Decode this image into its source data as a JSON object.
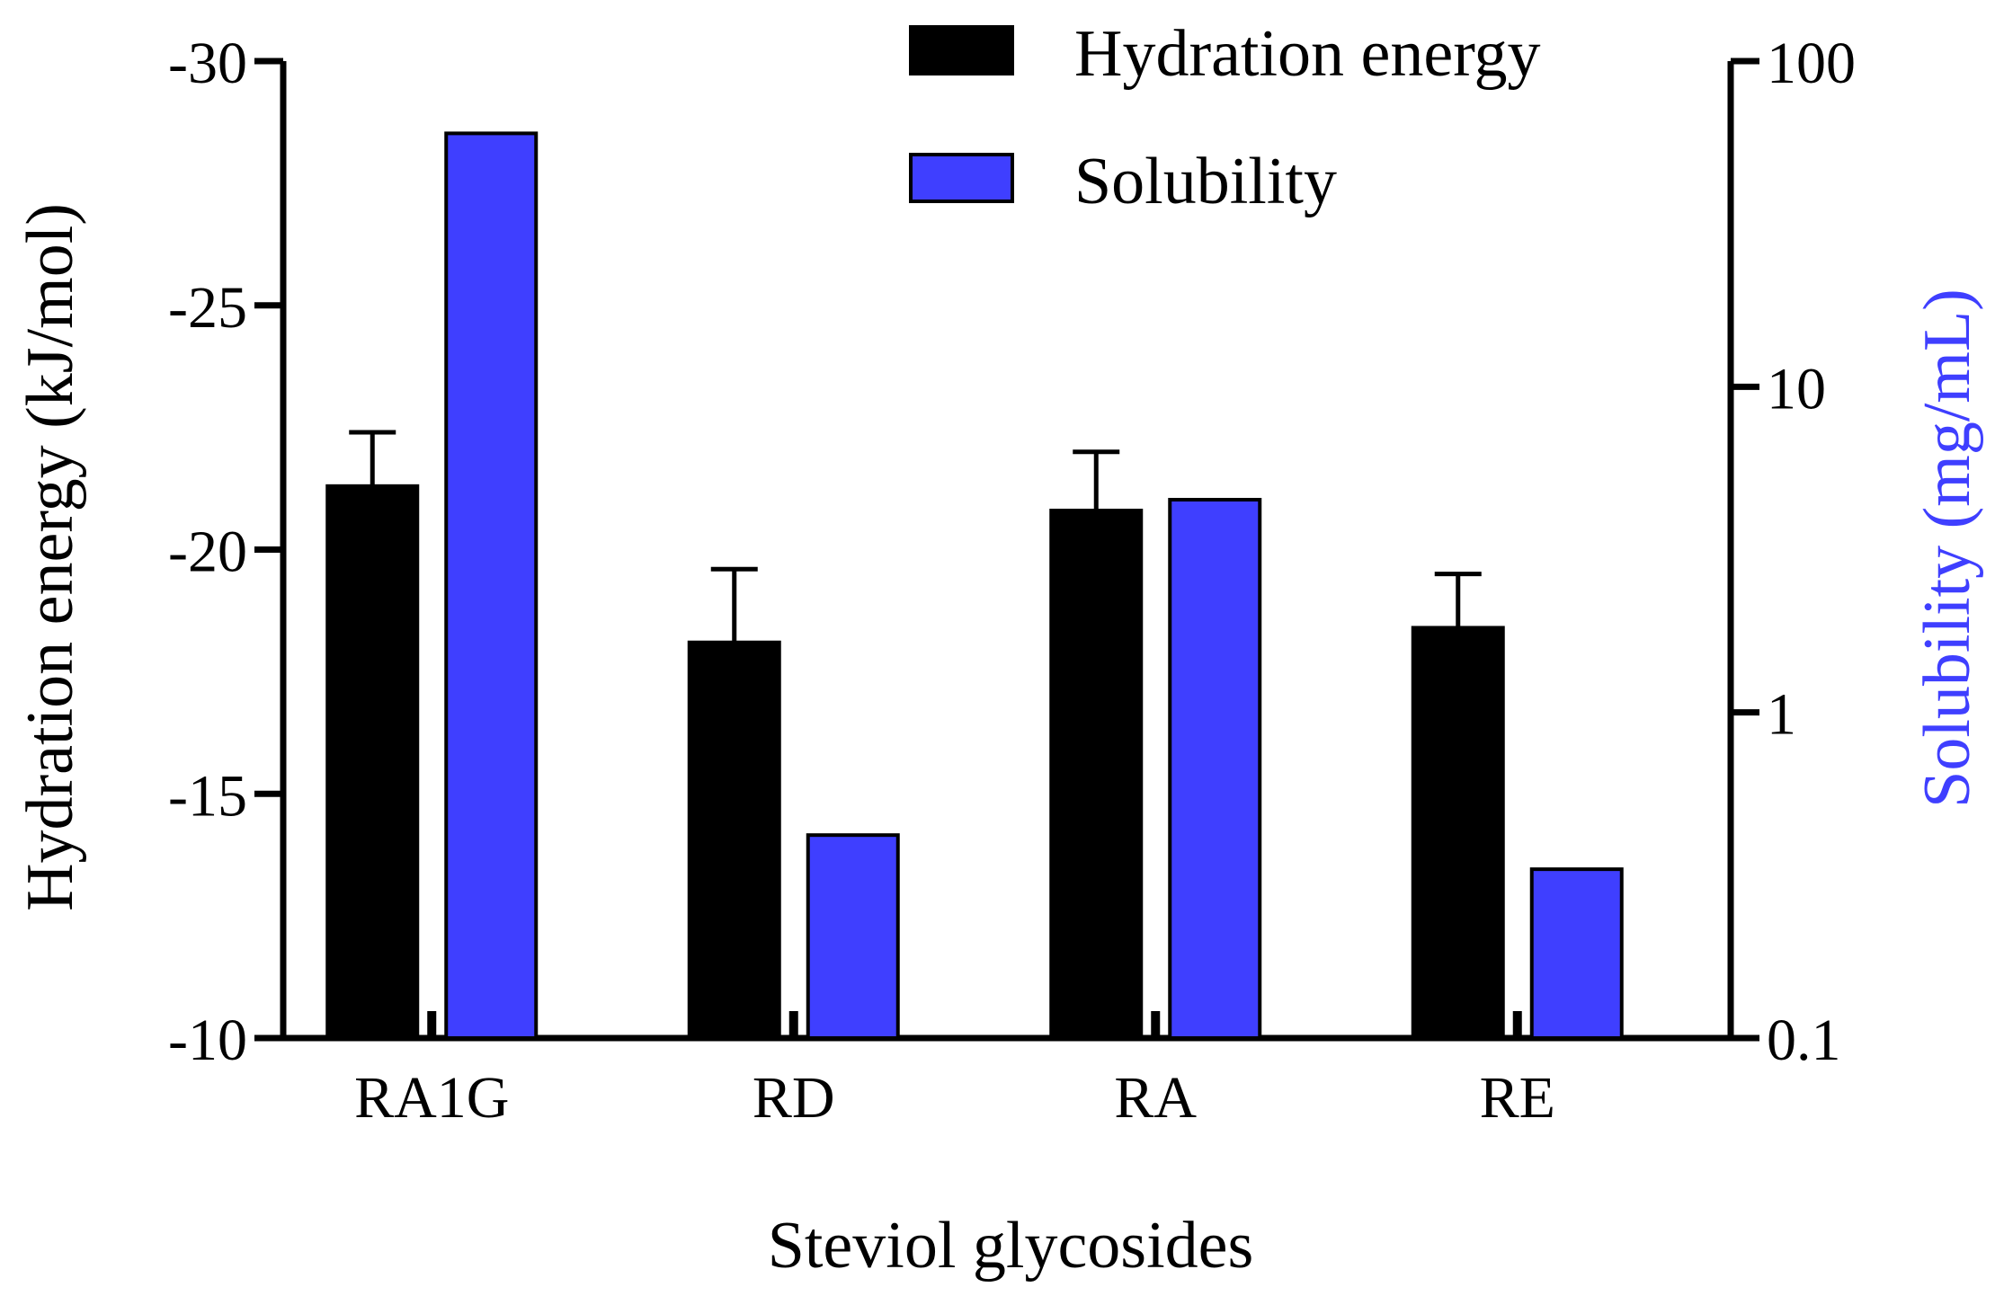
{
  "chart_data": {
    "type": "bar",
    "xlabel": "Steviol glycosides",
    "ylabel": "Hydration energy (kJ/mol)",
    "y2label": "Solubility (mg/mL)",
    "categories": [
      "RA1G",
      "RD",
      "RA",
      "RE"
    ],
    "ylim": [
      -10,
      -30
    ],
    "yticks": [
      -30,
      -25,
      -20,
      -15,
      -10
    ],
    "y2lim": [
      0.1,
      100
    ],
    "y2scale": "log",
    "y2ticks": [
      100,
      10,
      1,
      0.1
    ],
    "legend_position": "top",
    "series": [
      {
        "name": "Hydration energy",
        "axis": "left",
        "color": "#000000",
        "values": [
          -21.3,
          -18.1,
          -20.8,
          -18.4
        ],
        "errors": [
          1.1,
          1.5,
          1.2,
          1.1
        ]
      },
      {
        "name": "Solubility",
        "axis": "right",
        "color": "#3f3fff",
        "values": [
          60,
          0.42,
          4.5,
          0.33
        ]
      }
    ]
  }
}
